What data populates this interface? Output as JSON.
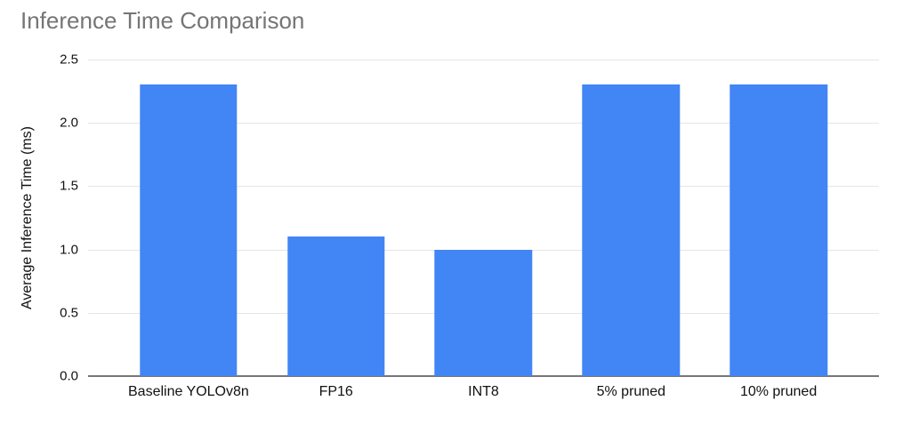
{
  "chart_data": {
    "type": "bar",
    "title": "Inference Time Comparison",
    "xlabel": "",
    "ylabel": "Average Inference Time (ms)",
    "categories": [
      "Baseline YOLOv8n",
      "FP16",
      "INT8",
      "5% pruned",
      "10% pruned"
    ],
    "values": [
      2.3,
      1.1,
      1.0,
      2.3,
      2.3
    ],
    "ylim": [
      0,
      2.5
    ],
    "yticks": [
      0.0,
      0.5,
      1.0,
      1.5,
      2.0,
      2.5
    ],
    "ytick_labels": [
      "0.0",
      "0.5",
      "1.0",
      "1.5",
      "2.0",
      "2.5"
    ],
    "grid": true,
    "legend": "none",
    "colors": {
      "bar": "#4285f4",
      "title": "#757575",
      "gridline": "#e6e6e6",
      "baseline": "#777777",
      "text": "#111111"
    }
  }
}
